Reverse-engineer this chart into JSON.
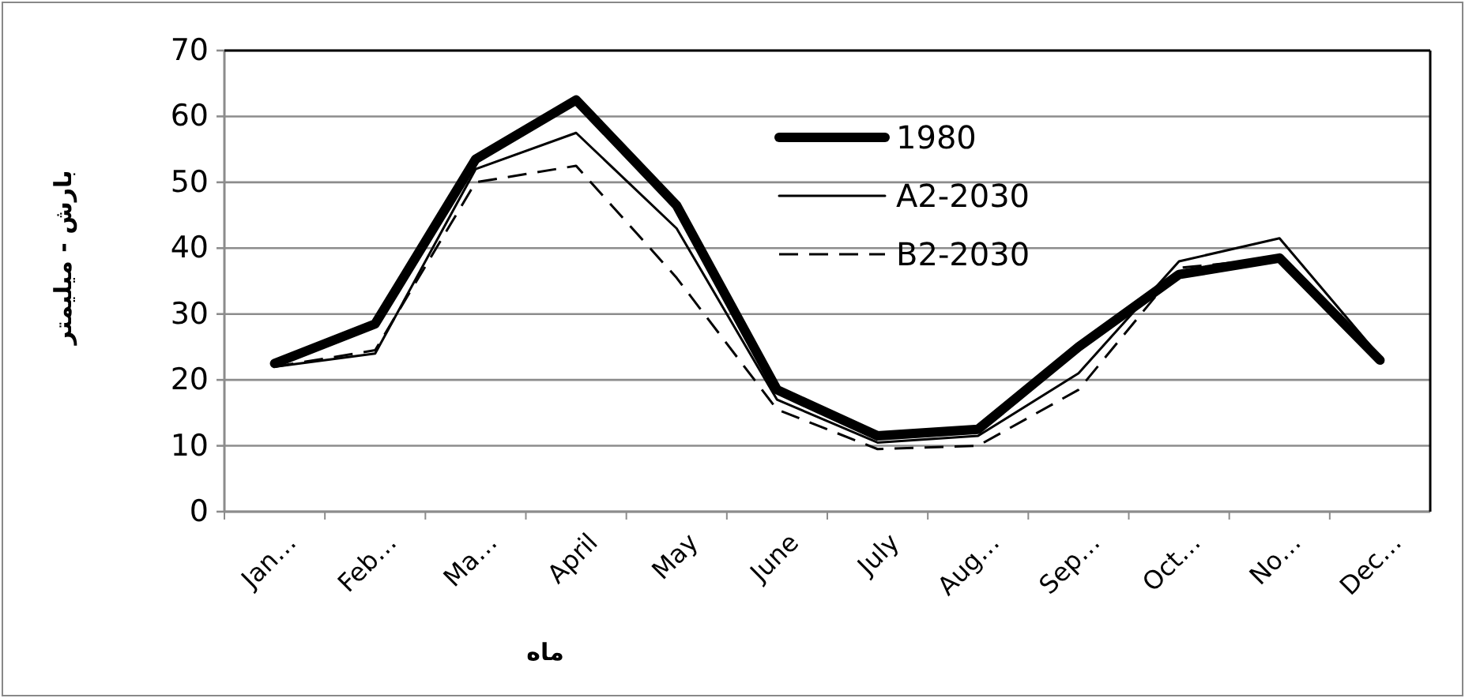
{
  "chart_data": {
    "type": "line",
    "xlabel": "ماه",
    "ylabel": "بارش - میلیمتر",
    "categories": [
      "Jan…",
      "Feb…",
      "Ma…",
      "April",
      "May",
      "June",
      "July",
      "Aug…",
      "Sep…",
      "Oct…",
      "No…",
      "Dec…"
    ],
    "series": [
      {
        "name": "1980",
        "color": "#000000",
        "line_style": "solid",
        "values": [
          22.5,
          28.5,
          53.5,
          62.5,
          46.5,
          18.5,
          11.5,
          12.5,
          25,
          36,
          38.5,
          23
        ]
      },
      {
        "name": "A2-2030",
        "color": "#000000",
        "line_style": "solid",
        "values": [
          22,
          24,
          52,
          57.5,
          43,
          17,
          10.5,
          11.5,
          21,
          38,
          41.5,
          23.5
        ]
      },
      {
        "name": "B2-2030",
        "color": "#000000",
        "line_style": "dashed",
        "values": [
          22,
          24.5,
          50,
          52.5,
          35.5,
          15.5,
          9.5,
          10,
          18.5,
          37,
          38.5,
          23.5
        ]
      }
    ],
    "ylim": [
      0,
      70
    ],
    "yticks": [
      0,
      10,
      20,
      30,
      40,
      50,
      60,
      70
    ],
    "grid": "y",
    "legend": "top right",
    "marker": "none"
  }
}
